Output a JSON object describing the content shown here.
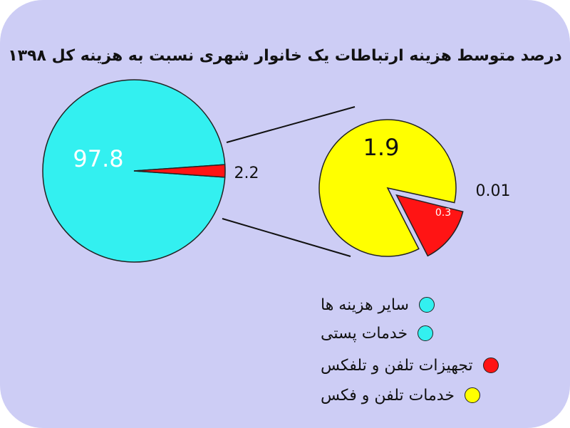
{
  "chart_data": [
    {
      "type": "pie",
      "title": "درصد متوسط هزینه ارتباطات یک خانوار شهری نسبت به هزینه کل ۱۳۹۸",
      "slices": [
        {
          "label": "97.8",
          "value": 97.8,
          "color": "#33f0f0"
        },
        {
          "label": "2.2",
          "value": 2.2,
          "color": "#ff1414"
        }
      ]
    },
    {
      "type": "pie",
      "slices": [
        {
          "label": "1.9",
          "value": 1.9,
          "color": "#ffff00"
        },
        {
          "label": "0.3",
          "value": 0.3,
          "color": "#ff1414"
        },
        {
          "label": "0.01",
          "value": 0.01,
          "color": "#33f0f0"
        }
      ]
    }
  ],
  "legend": [
    {
      "label": "سایر هزینه ها",
      "color": "#33f0f0"
    },
    {
      "label": "خدمات پستی",
      "color": "#33f0f0"
    },
    {
      "label": "تجهیزات تلفن و تلفکس",
      "color": "#ff1414"
    },
    {
      "label": "خدمات تلفن و فکس",
      "color": "#ffff00"
    }
  ]
}
